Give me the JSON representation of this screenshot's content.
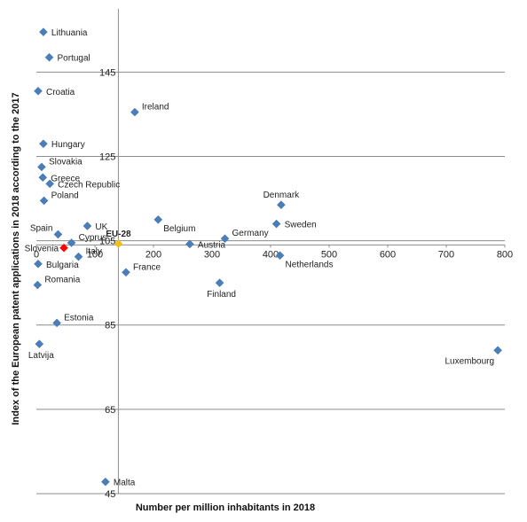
{
  "chart_data": {
    "type": "scatter",
    "xlabel": "Number per million inhabitants in 2018",
    "ylabel": "Index of the European patent applications in 2018  according to the 2017",
    "xlim": [
      0,
      800
    ],
    "ylim": [
      45,
      160
    ],
    "x_ticks": [
      {
        "value": 0,
        "label": "0"
      },
      {
        "value": 100,
        "label": "100"
      },
      {
        "value": 200,
        "label": "200"
      },
      {
        "value": 300,
        "label": "300"
      },
      {
        "value": 400,
        "label": "400"
      },
      {
        "value": 500,
        "label": "500"
      },
      {
        "value": 600,
        "label": "600"
      },
      {
        "value": 700,
        "label": "700"
      },
      {
        "value": 800,
        "label": "800"
      }
    ],
    "y_ticks": [
      {
        "value": 45,
        "label": "45"
      },
      {
        "value": 65,
        "label": "65"
      },
      {
        "value": 85,
        "label": "85"
      },
      {
        "value": 105,
        "label": "105"
      },
      {
        "value": 125,
        "label": "125"
      },
      {
        "value": 145,
        "label": "145"
      }
    ],
    "x_crosses_y_at": 104,
    "y_crosses_x_at": 140,
    "gridlines": "horizontal",
    "colors": {
      "default": "#4a7ebb",
      "highlight": "#ff0000",
      "eu": "#f2c010"
    },
    "points": [
      {
        "name": "Lithuania",
        "x": 12,
        "y": 154.5,
        "color": "#4a7ebb",
        "label_pos": "right"
      },
      {
        "name": "Portugal",
        "x": 22,
        "y": 148.5,
        "color": "#4a7ebb",
        "label_pos": "right"
      },
      {
        "name": "Croatia",
        "x": 3,
        "y": 140.5,
        "color": "#4a7ebb",
        "label_pos": "right"
      },
      {
        "name": "Ireland",
        "x": 168,
        "y": 135.5,
        "color": "#4a7ebb",
        "label_pos": "right-up"
      },
      {
        "name": "Hungary",
        "x": 12,
        "y": 128,
        "color": "#4a7ebb",
        "label_pos": "right"
      },
      {
        "name": "Slovakia",
        "x": 9,
        "y": 122.5,
        "color": "#4a7ebb",
        "label_pos": "right-up"
      },
      {
        "name": "Greece",
        "x": 11,
        "y": 120,
        "color": "#4a7ebb",
        "label_pos": "right"
      },
      {
        "name": "Czech Republic",
        "x": 23,
        "y": 118.5,
        "color": "#4a7ebb",
        "label_pos": "right"
      },
      {
        "name": "Poland",
        "x": 13,
        "y": 114.5,
        "color": "#4a7ebb",
        "label_pos": "right-up"
      },
      {
        "name": "Denmark",
        "x": 418,
        "y": 113.5,
        "color": "#4a7ebb",
        "label_pos": "up"
      },
      {
        "name": "Belgium",
        "x": 208,
        "y": 110,
        "color": "#4a7ebb",
        "label_pos": "right-down"
      },
      {
        "name": "UK",
        "x": 87,
        "y": 108.5,
        "color": "#4a7ebb",
        "label_pos": "right"
      },
      {
        "name": "Sweden",
        "x": 410,
        "y": 109,
        "color": "#4a7ebb",
        "label_pos": "right"
      },
      {
        "name": "Spain",
        "x": 37,
        "y": 106.5,
        "color": "#4a7ebb",
        "label_pos": "left-up"
      },
      {
        "name": "Cyprus",
        "x": 60,
        "y": 104.5,
        "color": "#4a7ebb",
        "label_pos": "right-up"
      },
      {
        "name": "Germany",
        "x": 322,
        "y": 105.5,
        "color": "#4a7ebb",
        "label_pos": "right-up"
      },
      {
        "name": "EU-28",
        "x": 140,
        "y": 104.3,
        "color": "#f2c010",
        "label_pos": "up"
      },
      {
        "name": "Austria",
        "x": 262,
        "y": 104.2,
        "color": "#4a7ebb",
        "label_pos": "right"
      },
      {
        "name": "Slovenia",
        "x": 47,
        "y": 103.3,
        "color": "#ff0000",
        "label_pos": "left"
      },
      {
        "name": "Italy",
        "x": 72,
        "y": 101.2,
        "color": "#4a7ebb",
        "label_pos": "right-up"
      },
      {
        "name": "Netherlands",
        "x": 416,
        "y": 101.5,
        "color": "#4a7ebb",
        "label_pos": "right-down"
      },
      {
        "name": "Bulgaria",
        "x": 3,
        "y": 99.5,
        "color": "#4a7ebb",
        "label_pos": "right"
      },
      {
        "name": "France",
        "x": 153,
        "y": 97.5,
        "color": "#4a7ebb",
        "label_pos": "right-up"
      },
      {
        "name": "Finland",
        "x": 313,
        "y": 95,
        "color": "#4a7ebb",
        "label_pos": "down"
      },
      {
        "name": "Romania",
        "x": 2,
        "y": 94.5,
        "color": "#4a7ebb",
        "label_pos": "right-up"
      },
      {
        "name": "Estonia",
        "x": 35,
        "y": 85.5,
        "color": "#4a7ebb",
        "label_pos": "right-up"
      },
      {
        "name": "Latvija",
        "x": 5,
        "y": 80.5,
        "color": "#4a7ebb",
        "label_pos": "down"
      },
      {
        "name": "Luxembourg",
        "x": 788,
        "y": 79,
        "color": "#4a7ebb",
        "label_pos": "left-down"
      },
      {
        "name": "Malta",
        "x": 118,
        "y": 47.8,
        "color": "#4a7ebb",
        "label_pos": "right"
      }
    ]
  }
}
